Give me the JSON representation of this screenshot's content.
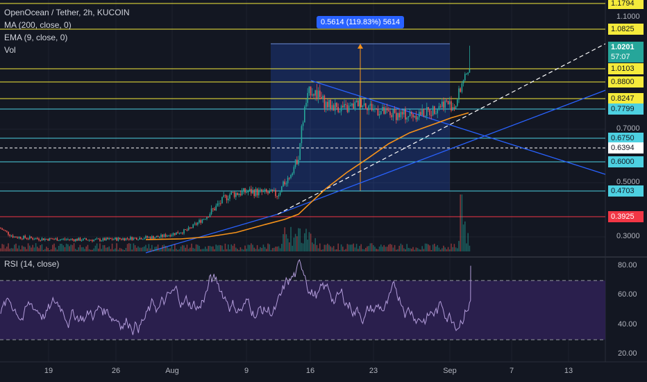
{
  "legend": {
    "title": "OpenOcean / Tether, 2h, KUCOIN",
    "ma": "MA (200, close, 0)",
    "ema": "EMA (9, close, 0)",
    "vol": "Vol"
  },
  "rsi_legend": "RSI (14, close)",
  "measure_label": "0.5614 (119.83%) 5614",
  "countdown": "57:07",
  "colors": {
    "background": "#131722",
    "up": "#26a69a",
    "down": "#ef5350",
    "ma": "#f7931a",
    "trend": "#2962ff",
    "yellow_line": "#f5eb3b",
    "cyan_line": "#4dd0e1",
    "red_line": "#f23645",
    "rsi": "#b39ddb",
    "rsi_band": "#2a1f4d"
  },
  "chart_data": [
    {
      "type": "candlestick",
      "title": "OpenOcean / Tether, 2h, KUCOIN",
      "x_ticks": [
        "19",
        "26",
        "Aug",
        "9",
        "16",
        "23",
        "Sep",
        "7",
        "13"
      ],
      "y_ticks": [
        "0.3000",
        "0.5000",
        "0.7000",
        "1.1000"
      ],
      "last_price": "1.0201",
      "price_lines": [
        {
          "label": "1.1794",
          "color": "yellow"
        },
        {
          "label": "1.0825",
          "color": "yellow"
        },
        {
          "label": "1.0103",
          "color": "yellow"
        },
        {
          "label": "0.8800",
          "color": "yellow"
        },
        {
          "label": "0.8247",
          "color": "yellow"
        },
        {
          "label": "0.7799",
          "color": "cyan"
        },
        {
          "label": "0.6750",
          "color": "cyan"
        },
        {
          "label": "0.6394",
          "color": "white-dashed"
        },
        {
          "label": "0.6000",
          "color": "cyan"
        },
        {
          "label": "0.4703",
          "color": "cyan"
        },
        {
          "label": "0.3925",
          "color": "red"
        }
      ],
      "measurement": {
        "change": "0.5614",
        "percent": "119.83%",
        "value": "5614"
      }
    },
    {
      "type": "line",
      "title": "RSI (14, close)",
      "y_ticks": [
        "80.00",
        "60.00",
        "40.00",
        "20.00"
      ],
      "band": [
        30,
        70
      ],
      "last_value": 80
    }
  ]
}
